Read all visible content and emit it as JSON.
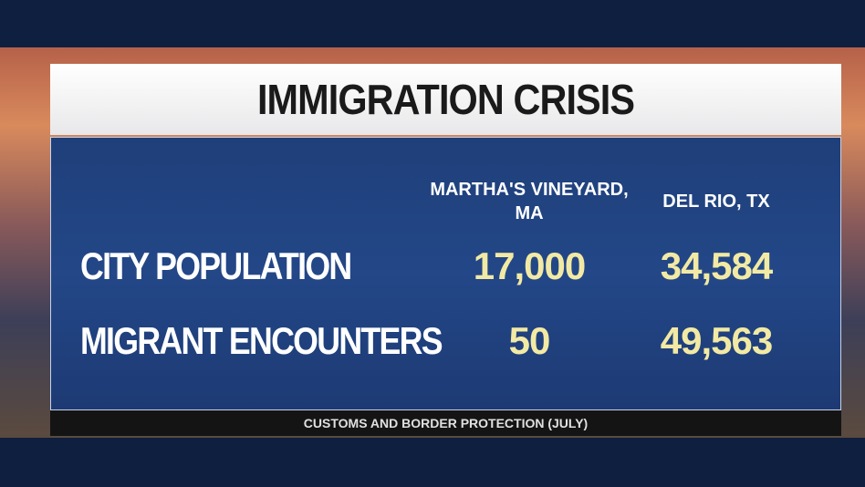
{
  "header": {
    "title": "IMMIGRATION CRISIS"
  },
  "table": {
    "columns": [
      "MARTHA'S VINEYARD, MA",
      "DEL RIO, TX"
    ],
    "rows": [
      [
        "CITY POPULATION",
        "17,000",
        "34,584"
      ],
      [
        "MIGRANT ENCOUNTERS",
        "50",
        "49,563"
      ]
    ]
  },
  "source": "CUSTOMS AND BORDER PROTECTION (JULY)"
}
